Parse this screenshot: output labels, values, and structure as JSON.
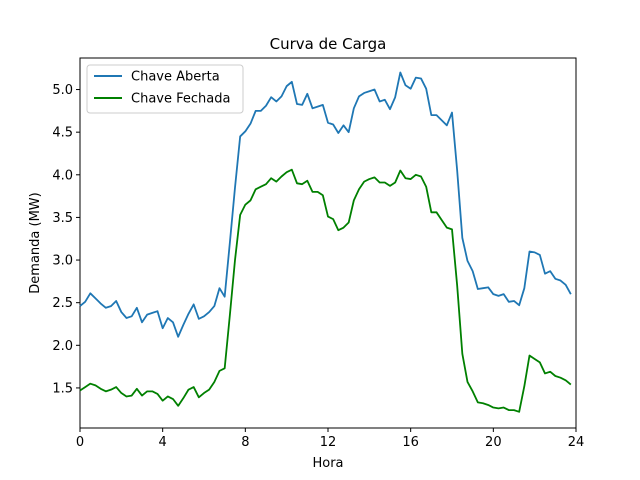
{
  "chart_data": {
    "type": "line",
    "title": "Curva de Carga",
    "xlabel": "Hora",
    "ylabel": "Demanda (MW)",
    "xlim": [
      0,
      24
    ],
    "ylim": [
      1.03,
      5.37
    ],
    "xticks": [
      0,
      4,
      8,
      12,
      16,
      20,
      24
    ],
    "yticks": [
      1.5,
      2.0,
      2.5,
      3.0,
      3.5,
      4.0,
      4.5,
      5.0
    ],
    "xtick_labels": [
      "0",
      "4",
      "8",
      "12",
      "16",
      "20",
      "24"
    ],
    "ytick_labels": [
      "1.5",
      "2.0",
      "2.5",
      "3.0",
      "3.5",
      "4.0",
      "4.5",
      "5.0"
    ],
    "grid": false,
    "legend_position": "top-left",
    "series": [
      {
        "name": "Chave Aberta",
        "color": "#1f77b4",
        "x": [
          0,
          0.25,
          0.5,
          0.75,
          1,
          1.25,
          1.5,
          1.75,
          2,
          2.25,
          2.5,
          2.75,
          3,
          3.25,
          3.5,
          3.75,
          4,
          4.25,
          4.5,
          4.75,
          5,
          5.25,
          5.5,
          5.75,
          6,
          6.25,
          6.5,
          6.75,
          7,
          7.25,
          7.5,
          7.75,
          8,
          8.25,
          8.5,
          8.75,
          9,
          9.25,
          9.5,
          9.75,
          10,
          10.25,
          10.5,
          10.75,
          11,
          11.25,
          11.5,
          11.75,
          12,
          12.25,
          12.5,
          12.75,
          13,
          13.25,
          13.5,
          13.75,
          14,
          14.25,
          14.5,
          14.75,
          15,
          15.25,
          15.5,
          15.75,
          16,
          16.25,
          16.5,
          16.75,
          17,
          17.25,
          17.5,
          17.75,
          18,
          18.25,
          18.5,
          18.75,
          19,
          19.25,
          19.5,
          19.75,
          20,
          20.25,
          20.5,
          20.75,
          21,
          21.25,
          21.5,
          21.75,
          22,
          22.25,
          22.5,
          22.75,
          23,
          23.25,
          23.5,
          23.75
        ],
        "values": [
          2.46,
          2.51,
          2.61,
          2.55,
          2.49,
          2.44,
          2.46,
          2.52,
          2.39,
          2.32,
          2.34,
          2.44,
          2.27,
          2.36,
          2.38,
          2.4,
          2.2,
          2.32,
          2.27,
          2.1,
          2.24,
          2.37,
          2.48,
          2.31,
          2.34,
          2.39,
          2.46,
          2.67,
          2.57,
          3.2,
          3.85,
          4.45,
          4.51,
          4.6,
          4.75,
          4.75,
          4.81,
          4.91,
          4.86,
          4.92,
          5.04,
          5.09,
          4.83,
          4.82,
          4.95,
          4.78,
          4.8,
          4.82,
          4.61,
          4.59,
          4.49,
          4.58,
          4.5,
          4.78,
          4.92,
          4.96,
          4.98,
          5.0,
          4.86,
          4.88,
          4.77,
          4.91,
          5.2,
          5.05,
          5.01,
          5.14,
          5.13,
          5.01,
          4.7,
          4.7,
          4.64,
          4.58,
          4.73,
          4.05,
          3.26,
          2.99,
          2.87,
          2.66,
          2.67,
          2.68,
          2.6,
          2.58,
          2.6,
          2.51,
          2.52,
          2.47,
          2.67,
          3.1,
          3.09,
          3.06,
          2.84,
          2.87,
          2.78,
          2.76,
          2.71,
          2.6
        ]
      },
      {
        "name": "Chave Fechada",
        "color": "#008000",
        "x": [
          0,
          0.25,
          0.5,
          0.75,
          1,
          1.25,
          1.5,
          1.75,
          2,
          2.25,
          2.5,
          2.75,
          3,
          3.25,
          3.5,
          3.75,
          4,
          4.25,
          4.5,
          4.75,
          5,
          5.25,
          5.5,
          5.75,
          6,
          6.25,
          6.5,
          6.75,
          7,
          7.25,
          7.5,
          7.75,
          8,
          8.25,
          8.5,
          8.75,
          9,
          9.25,
          9.5,
          9.75,
          10,
          10.25,
          10.5,
          10.75,
          11,
          11.25,
          11.5,
          11.75,
          12,
          12.25,
          12.5,
          12.75,
          13,
          13.25,
          13.5,
          13.75,
          14,
          14.25,
          14.5,
          14.75,
          15,
          15.25,
          15.5,
          15.75,
          16,
          16.25,
          16.5,
          16.75,
          17,
          17.25,
          17.5,
          17.75,
          18,
          18.25,
          18.5,
          18.75,
          19,
          19.25,
          19.5,
          19.75,
          20,
          20.25,
          20.5,
          20.75,
          21,
          21.25,
          21.5,
          21.75,
          22,
          22.25,
          22.5,
          22.75,
          23,
          23.25,
          23.5,
          23.75
        ],
        "values": [
          1.47,
          1.51,
          1.55,
          1.53,
          1.49,
          1.46,
          1.48,
          1.51,
          1.44,
          1.4,
          1.41,
          1.49,
          1.41,
          1.46,
          1.46,
          1.43,
          1.35,
          1.4,
          1.37,
          1.29,
          1.38,
          1.48,
          1.51,
          1.39,
          1.44,
          1.48,
          1.57,
          1.7,
          1.73,
          2.35,
          3.0,
          3.53,
          3.65,
          3.7,
          3.83,
          3.86,
          3.89,
          3.96,
          3.92,
          3.98,
          4.03,
          4.06,
          3.9,
          3.89,
          3.93,
          3.8,
          3.8,
          3.76,
          3.51,
          3.48,
          3.35,
          3.38,
          3.44,
          3.7,
          3.83,
          3.92,
          3.95,
          3.97,
          3.91,
          3.91,
          3.87,
          3.91,
          4.05,
          3.96,
          3.95,
          4.0,
          3.98,
          3.86,
          3.56,
          3.56,
          3.47,
          3.38,
          3.36,
          2.7,
          1.9,
          1.57,
          1.46,
          1.33,
          1.32,
          1.3,
          1.27,
          1.26,
          1.27,
          1.24,
          1.24,
          1.22,
          1.52,
          1.88,
          1.84,
          1.8,
          1.67,
          1.69,
          1.64,
          1.62,
          1.59,
          1.54
        ]
      }
    ]
  }
}
